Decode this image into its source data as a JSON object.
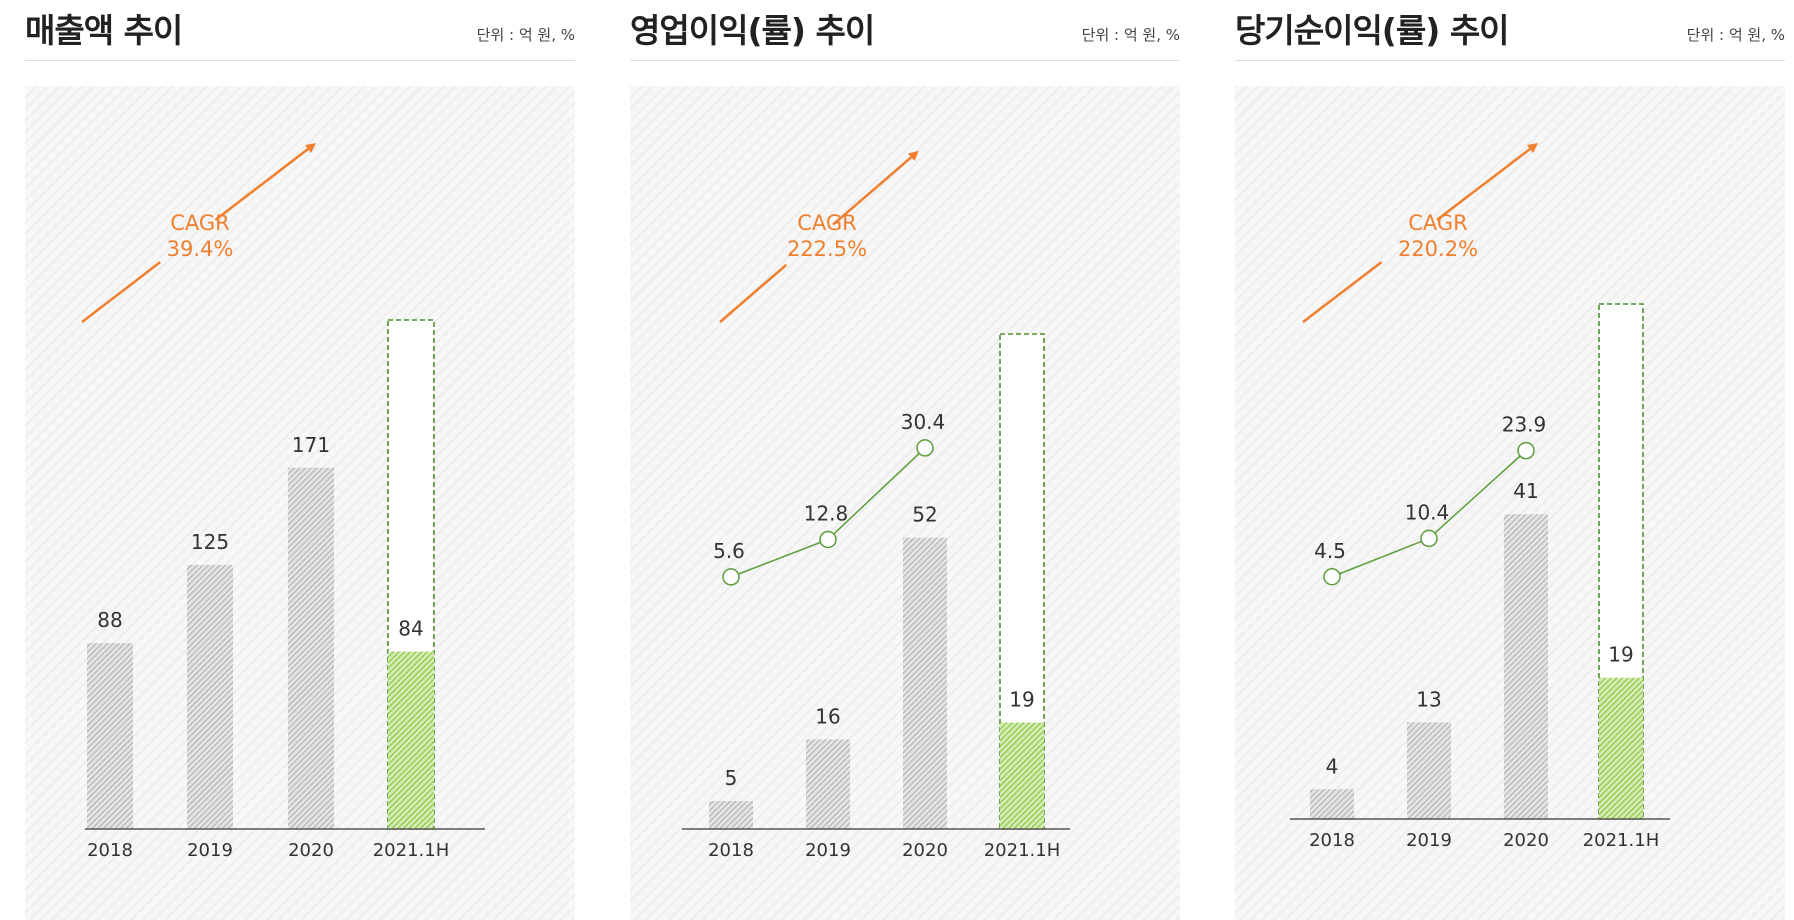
{
  "colors": {
    "grey_bar": "#b0b0b0",
    "green_bar": "#8cc63f",
    "green_line": "#5a9e3a",
    "green_dash": "#4f8f2f",
    "orange": "#f08030",
    "axis": "#555555"
  },
  "chart_data": [
    {
      "type": "bar",
      "title": "매출액 추이",
      "unit": "단위 : 억 원, %",
      "categories": [
        "2018",
        "2019",
        "2020",
        "2021.1H"
      ],
      "values": [
        88,
        125,
        171,
        84
      ],
      "value_labels": [
        "88",
        "125",
        "171",
        "84"
      ],
      "highlight_index": 3,
      "ylim": [
        0,
        240
      ],
      "cagr_label": "CAGR",
      "cagr_value": "39.4%"
    },
    {
      "type": "bar",
      "title": "영업이익(률) 추이",
      "unit": "단위 : 억 원, %",
      "categories": [
        "2018",
        "2019",
        "2020",
        "2021.1H"
      ],
      "values": [
        5,
        16,
        52,
        19
      ],
      "value_labels": [
        "5",
        "16",
        "52",
        "19"
      ],
      "highlight_index": 3,
      "ylim": [
        0,
        88
      ],
      "line_series": {
        "name": "영업이익률",
        "values": [
          5.6,
          12.8,
          30.4
        ],
        "labels": [
          "5.6",
          "12.8",
          "30.4"
        ],
        "ylim": [
          0,
          50
        ]
      },
      "cagr_label": "CAGR",
      "cagr_value": "222.5%"
    },
    {
      "type": "bar",
      "title": "당기순이익(률) 추이",
      "unit": "단위 : 억 원, %",
      "categories": [
        "2018",
        "2019",
        "2020",
        "2021.1H"
      ],
      "values": [
        4,
        13,
        41,
        19
      ],
      "value_labels": [
        "4",
        "13",
        "41",
        "19"
      ],
      "highlight_index": 3,
      "ylim": [
        0,
        69
      ],
      "line_series": {
        "name": "당기순이익률",
        "values": [
          4.5,
          10.4,
          23.9
        ],
        "labels": [
          "4.5",
          "10.4",
          "23.9"
        ],
        "ylim": [
          0,
          40
        ]
      },
      "cagr_label": "CAGR",
      "cagr_value": "220.2%"
    }
  ]
}
